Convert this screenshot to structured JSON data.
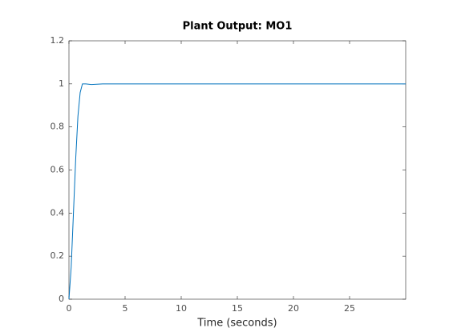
{
  "chart_data": {
    "type": "line",
    "title": "Plant Output:  MO1",
    "x_label": "Time (seconds)",
    "x": [
      0,
      0.2,
      0.4,
      0.6,
      0.8,
      1.0,
      1.2,
      1.5,
      2,
      3,
      30
    ],
    "series": [
      {
        "color": "#0072bd",
        "values": [
          0,
          0.15,
          0.4,
          0.65,
          0.85,
          0.96,
          1.0,
          1.0,
          0.997,
          1.0,
          1.0
        ]
      }
    ],
    "xlim": [
      0,
      30
    ],
    "xticks": [
      0,
      5,
      10,
      15,
      20,
      25
    ],
    "ylim": [
      0,
      1.2
    ],
    "yticks": [
      0,
      0.2,
      0.4,
      0.6,
      0.8,
      1,
      1.2
    ]
  }
}
